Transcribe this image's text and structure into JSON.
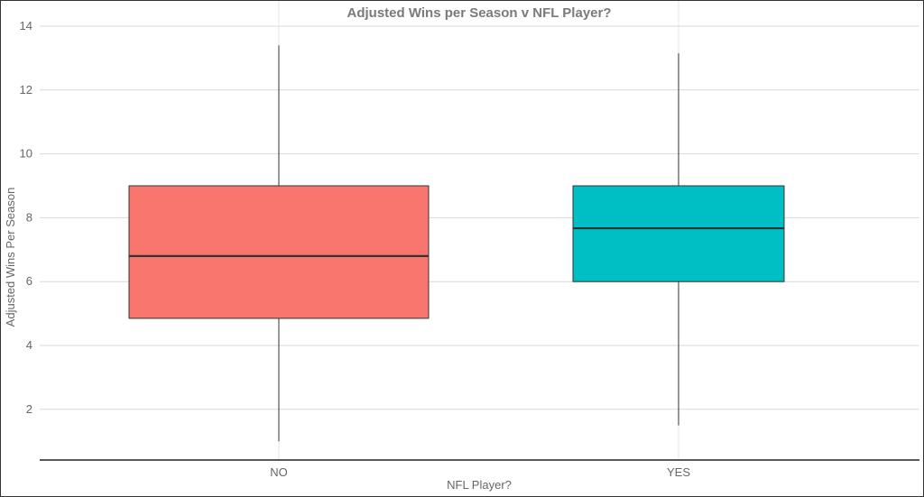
{
  "chart_data": {
    "type": "box",
    "title": "Adjusted Wins per Season v NFL Player?",
    "xlabel": "NFL Player?",
    "ylabel": "Adjusted Wins Per Season",
    "categories": [
      "NO",
      "YES"
    ],
    "ylim": [
      0.35,
      14
    ],
    "yticks": [
      2,
      4,
      6,
      8,
      10,
      12,
      14
    ],
    "grid": true,
    "boxes": [
      {
        "category": "NO",
        "min": 1.0,
        "q1": 4.85,
        "median": 6.8,
        "q3": 9.0,
        "max": 13.4,
        "color": "#F8766D"
      },
      {
        "category": "YES",
        "min": 1.5,
        "q1": 6.0,
        "median": 7.67,
        "q3": 9.0,
        "max": 13.15,
        "color": "#00BFC4"
      }
    ]
  }
}
